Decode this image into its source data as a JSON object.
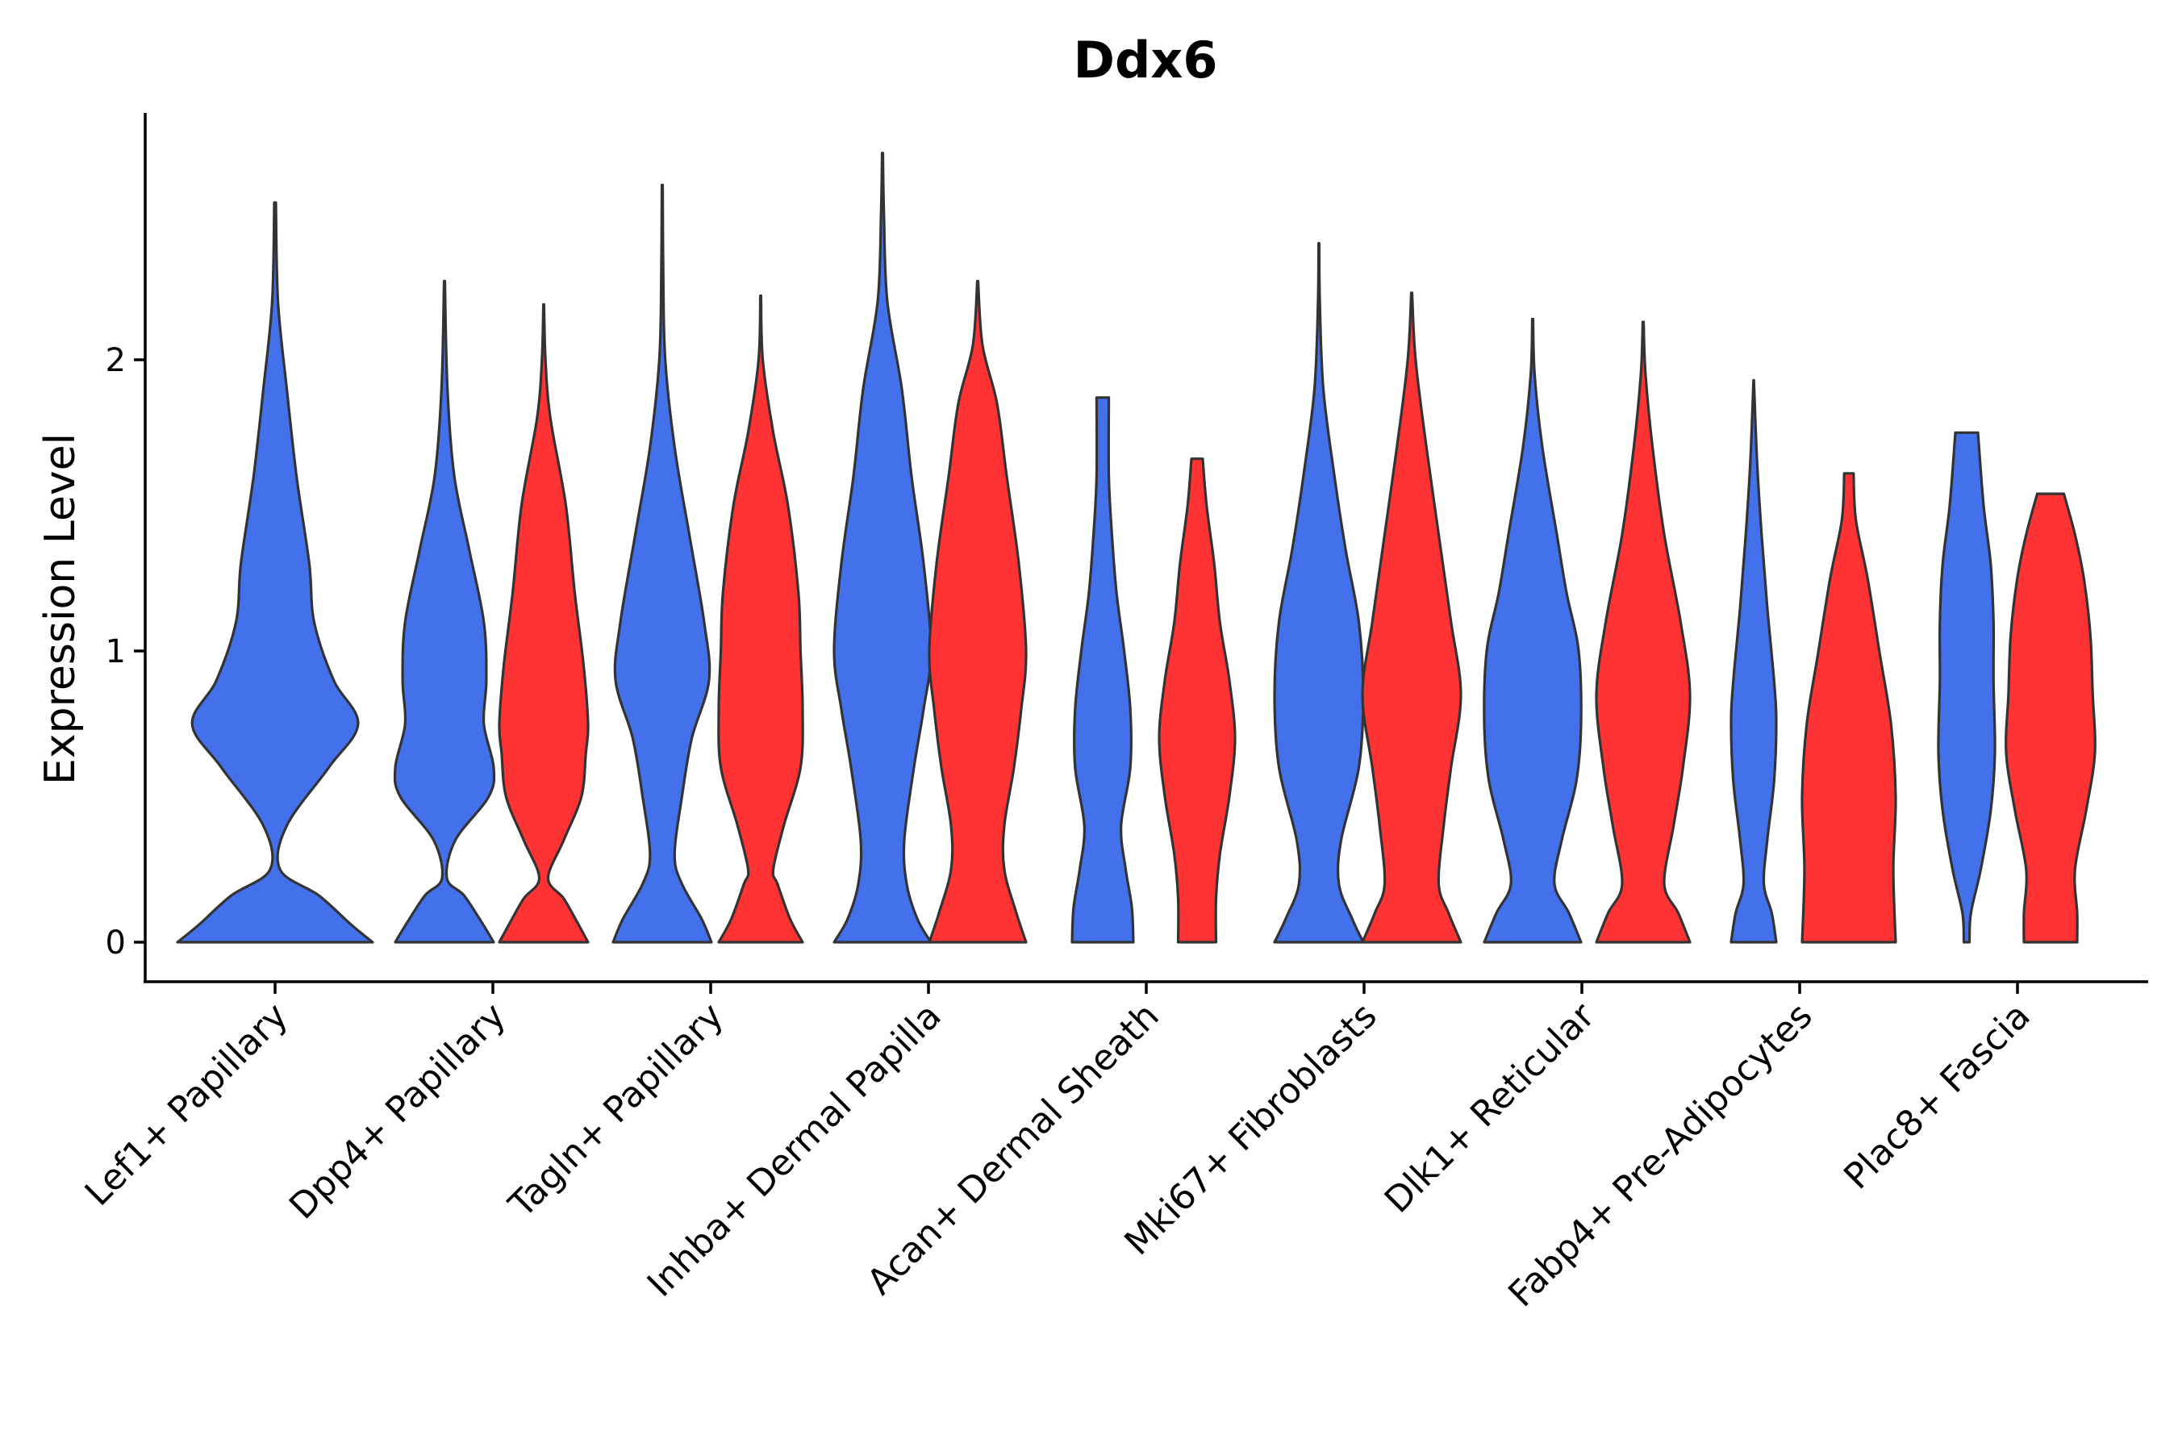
{
  "chart_data": {
    "type": "violin",
    "title": "Ddx6",
    "xlabel": "",
    "ylabel": "Expression Level",
    "ylim": [
      -0.14,
      2.84
    ],
    "yticks": [
      0,
      1,
      2
    ],
    "grid": false,
    "legend": "none",
    "colors": {
      "blue": "#4370EB",
      "red": "#FF3333"
    },
    "categories": [
      "Lef1+ Papillary",
      "Dpp4+ Papillary",
      "Tagln+ Papillary",
      "Inhba+ Dermal Papilla",
      "Acan+ Dermal Sheath",
      "Mki67+ Fibroblasts",
      "Dlk1+ Reticular",
      "Fabp4+ Pre-Adipocytes",
      "Plac8+ Fascia"
    ],
    "violins": [
      {
        "category": "Lef1+ Papillary",
        "color": "blue",
        "max": 2.54,
        "profile": [
          [
            0,
            1.0
          ],
          [
            0.06,
            0.78
          ],
          [
            0.16,
            0.45
          ],
          [
            0.25,
            0.05
          ],
          [
            0.4,
            0.12
          ],
          [
            0.6,
            0.55
          ],
          [
            0.75,
            0.85
          ],
          [
            0.9,
            0.6
          ],
          [
            1.1,
            0.4
          ],
          [
            1.3,
            0.35
          ],
          [
            1.6,
            0.22
          ],
          [
            1.9,
            0.12
          ],
          [
            2.2,
            0.03
          ],
          [
            2.54,
            0.0
          ]
        ]
      },
      {
        "category": "Dpp4+ Papillary",
        "color": "blue",
        "max": 2.27,
        "profile": [
          [
            0,
            1.0
          ],
          [
            0.07,
            0.75
          ],
          [
            0.16,
            0.4
          ],
          [
            0.22,
            0.05
          ],
          [
            0.35,
            0.22
          ],
          [
            0.5,
            0.9
          ],
          [
            0.6,
            1.0
          ],
          [
            0.75,
            0.8
          ],
          [
            0.9,
            0.85
          ],
          [
            1.1,
            0.8
          ],
          [
            1.35,
            0.5
          ],
          [
            1.6,
            0.2
          ],
          [
            1.9,
            0.06
          ],
          [
            2.27,
            0.0
          ]
        ]
      },
      {
        "category": "Dpp4+ Papillary",
        "color": "red",
        "max": 2.19,
        "profile": [
          [
            0,
            1.0
          ],
          [
            0.07,
            0.75
          ],
          [
            0.15,
            0.45
          ],
          [
            0.22,
            0.1
          ],
          [
            0.35,
            0.45
          ],
          [
            0.5,
            0.85
          ],
          [
            0.65,
            0.95
          ],
          [
            0.75,
            1.0
          ],
          [
            0.95,
            0.9
          ],
          [
            1.2,
            0.7
          ],
          [
            1.5,
            0.5
          ],
          [
            1.8,
            0.15
          ],
          [
            2.0,
            0.04
          ],
          [
            2.19,
            0.0
          ]
        ]
      },
      {
        "category": "Tagln+ Papillary",
        "color": "blue",
        "max": 2.6,
        "profile": [
          [
            0,
            1.0
          ],
          [
            0.08,
            0.8
          ],
          [
            0.2,
            0.4
          ],
          [
            0.3,
            0.25
          ],
          [
            0.5,
            0.4
          ],
          [
            0.7,
            0.6
          ],
          [
            0.9,
            0.95
          ],
          [
            1.1,
            0.85
          ],
          [
            1.4,
            0.55
          ],
          [
            1.7,
            0.25
          ],
          [
            2.0,
            0.06
          ],
          [
            2.3,
            0.02
          ],
          [
            2.6,
            0.0
          ]
        ]
      },
      {
        "category": "Tagln+ Papillary",
        "color": "red",
        "max": 2.22,
        "profile": [
          [
            0,
            1.0
          ],
          [
            0.08,
            0.7
          ],
          [
            0.2,
            0.4
          ],
          [
            0.25,
            0.3
          ],
          [
            0.4,
            0.55
          ],
          [
            0.6,
            0.95
          ],
          [
            0.8,
            1.0
          ],
          [
            1.0,
            0.95
          ],
          [
            1.2,
            0.9
          ],
          [
            1.5,
            0.65
          ],
          [
            1.75,
            0.3
          ],
          [
            2.0,
            0.05
          ],
          [
            2.22,
            0.0
          ]
        ]
      },
      {
        "category": "Inhba+ Dermal Papilla",
        "color": "blue",
        "max": 2.71,
        "profile": [
          [
            0,
            1.0
          ],
          [
            0.08,
            0.72
          ],
          [
            0.2,
            0.5
          ],
          [
            0.35,
            0.45
          ],
          [
            0.6,
            0.65
          ],
          [
            0.8,
            0.85
          ],
          [
            1.0,
            1.0
          ],
          [
            1.3,
            0.85
          ],
          [
            1.6,
            0.6
          ],
          [
            1.9,
            0.4
          ],
          [
            2.2,
            0.1
          ],
          [
            2.5,
            0.03
          ],
          [
            2.71,
            0.0
          ]
        ]
      },
      {
        "category": "Inhba+ Dermal Papilla",
        "color": "red",
        "max": 2.27,
        "profile": [
          [
            0,
            1.0
          ],
          [
            0.1,
            0.8
          ],
          [
            0.25,
            0.55
          ],
          [
            0.4,
            0.55
          ],
          [
            0.6,
            0.75
          ],
          [
            0.8,
            0.9
          ],
          [
            1.0,
            1.0
          ],
          [
            1.3,
            0.85
          ],
          [
            1.6,
            0.6
          ],
          [
            1.85,
            0.4
          ],
          [
            2.05,
            0.1
          ],
          [
            2.27,
            0.0
          ]
        ]
      },
      {
        "category": "Acan+ Dermal Sheath",
        "color": "blue",
        "max": 1.87,
        "profile": [
          [
            0,
            1.0
          ],
          [
            0.12,
            0.95
          ],
          [
            0.25,
            0.75
          ],
          [
            0.4,
            0.6
          ],
          [
            0.6,
            0.9
          ],
          [
            0.8,
            0.9
          ],
          [
            1.0,
            0.7
          ],
          [
            1.2,
            0.45
          ],
          [
            1.4,
            0.3
          ],
          [
            1.6,
            0.2
          ],
          [
            1.87,
            0.2
          ]
        ]
      },
      {
        "category": "Acan+ Dermal Sheath",
        "color": "red",
        "max": 1.66,
        "profile": [
          [
            0,
            0.5
          ],
          [
            0.15,
            0.5
          ],
          [
            0.3,
            0.6
          ],
          [
            0.5,
            0.85
          ],
          [
            0.7,
            1.0
          ],
          [
            0.9,
            0.85
          ],
          [
            1.1,
            0.6
          ],
          [
            1.3,
            0.45
          ],
          [
            1.5,
            0.25
          ],
          [
            1.66,
            0.15
          ]
        ]
      },
      {
        "category": "Mki67+ Fibroblasts",
        "color": "blue",
        "max": 2.4,
        "profile": [
          [
            0,
            1.0
          ],
          [
            0.08,
            0.75
          ],
          [
            0.2,
            0.45
          ],
          [
            0.35,
            0.5
          ],
          [
            0.6,
            0.9
          ],
          [
            0.85,
            1.0
          ],
          [
            1.1,
            0.9
          ],
          [
            1.35,
            0.6
          ],
          [
            1.6,
            0.35
          ],
          [
            1.9,
            0.1
          ],
          [
            2.2,
            0.02
          ],
          [
            2.4,
            0.0
          ]
        ]
      },
      {
        "category": "Mki67+ Fibroblasts",
        "color": "red",
        "max": 2.23,
        "profile": [
          [
            0,
            1.0
          ],
          [
            0.1,
            0.75
          ],
          [
            0.2,
            0.55
          ],
          [
            0.4,
            0.65
          ],
          [
            0.6,
            0.8
          ],
          [
            0.85,
            1.0
          ],
          [
            1.1,
            0.8
          ],
          [
            1.4,
            0.55
          ],
          [
            1.7,
            0.3
          ],
          [
            2.0,
            0.08
          ],
          [
            2.23,
            0.0
          ]
        ]
      },
      {
        "category": "Dlk1+ Reticular",
        "color": "blue",
        "max": 2.14,
        "profile": [
          [
            0,
            1.0
          ],
          [
            0.1,
            0.75
          ],
          [
            0.2,
            0.45
          ],
          [
            0.35,
            0.6
          ],
          [
            0.55,
            0.9
          ],
          [
            0.75,
            1.0
          ],
          [
            1.0,
            0.95
          ],
          [
            1.2,
            0.7
          ],
          [
            1.4,
            0.5
          ],
          [
            1.7,
            0.2
          ],
          [
            1.95,
            0.04
          ],
          [
            2.14,
            0.0
          ]
        ]
      },
      {
        "category": "Dlk1+ Reticular",
        "color": "red",
        "max": 2.13,
        "profile": [
          [
            0,
            1.0
          ],
          [
            0.1,
            0.75
          ],
          [
            0.2,
            0.45
          ],
          [
            0.4,
            0.65
          ],
          [
            0.6,
            0.85
          ],
          [
            0.85,
            1.0
          ],
          [
            1.1,
            0.8
          ],
          [
            1.4,
            0.45
          ],
          [
            1.7,
            0.2
          ],
          [
            1.95,
            0.05
          ],
          [
            2.13,
            0.0
          ]
        ]
      },
      {
        "category": "Fabp4+ Pre-Adipocytes",
        "color": "blue",
        "max": 1.93,
        "profile": [
          [
            0,
            1.0
          ],
          [
            0.1,
            0.8
          ],
          [
            0.2,
            0.45
          ],
          [
            0.35,
            0.6
          ],
          [
            0.55,
            0.9
          ],
          [
            0.75,
            1.0
          ],
          [
            0.9,
            0.9
          ],
          [
            1.15,
            0.6
          ],
          [
            1.4,
            0.35
          ],
          [
            1.65,
            0.15
          ],
          [
            1.93,
            0.0
          ]
        ]
      },
      {
        "category": "Fabp4+ Pre-Adipocytes",
        "color": "red",
        "max": 1.61,
        "profile": [
          [
            0,
            1.0
          ],
          [
            0.25,
            0.95
          ],
          [
            0.5,
            1.0
          ],
          [
            0.75,
            0.9
          ],
          [
            1.0,
            0.65
          ],
          [
            1.25,
            0.4
          ],
          [
            1.45,
            0.15
          ],
          [
            1.61,
            0.1
          ]
        ]
      },
      {
        "category": "Plac8+ Fascia",
        "color": "blue",
        "max": 1.75,
        "profile": [
          [
            0,
            0.1
          ],
          [
            0.1,
            0.15
          ],
          [
            0.25,
            0.5
          ],
          [
            0.45,
            0.85
          ],
          [
            0.65,
            1.0
          ],
          [
            0.9,
            0.95
          ],
          [
            1.1,
            0.95
          ],
          [
            1.3,
            0.85
          ],
          [
            1.5,
            0.6
          ],
          [
            1.75,
            0.4
          ]
        ]
      },
      {
        "category": "Plac8+ Fascia",
        "color": "red",
        "max": 1.54,
        "profile": [
          [
            0,
            0.6
          ],
          [
            0.1,
            0.6
          ],
          [
            0.25,
            0.55
          ],
          [
            0.45,
            0.8
          ],
          [
            0.65,
            1.0
          ],
          [
            0.85,
            0.95
          ],
          [
            1.05,
            0.9
          ],
          [
            1.25,
            0.75
          ],
          [
            1.4,
            0.55
          ],
          [
            1.54,
            0.3
          ]
        ]
      }
    ]
  }
}
